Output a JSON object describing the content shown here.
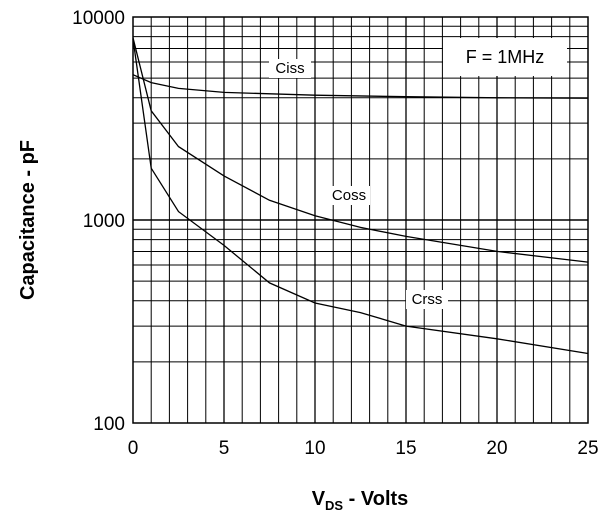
{
  "chart_data": {
    "type": "line",
    "title": "",
    "xlabel_main": "V",
    "xlabel_sub": "DS",
    "xlabel_rest": " - Volts",
    "ylabel": "Capacitance - pF",
    "y_scale": "log",
    "xlim": [
      0,
      25
    ],
    "ylim": [
      100,
      10000
    ],
    "x_ticks": [
      0,
      5,
      10,
      15,
      20,
      25
    ],
    "x_tick_labels": [
      "0",
      "5",
      "10",
      "15",
      "20",
      "25"
    ],
    "y_ticks": [
      100,
      1000,
      10000
    ],
    "y_tick_labels": [
      "100",
      "1000",
      "10000"
    ],
    "grid": true,
    "annotation": "F = 1MHz",
    "series": [
      {
        "name": "Ciss",
        "points": [
          [
            0,
            5200
          ],
          [
            1,
            4750
          ],
          [
            2.5,
            4450
          ],
          [
            5,
            4250
          ],
          [
            10,
            4120
          ],
          [
            15,
            4050
          ],
          [
            20,
            4000
          ],
          [
            25,
            3980
          ]
        ]
      },
      {
        "name": "Coss",
        "points": [
          [
            0,
            7900
          ],
          [
            1,
            3450
          ],
          [
            2.5,
            2300
          ],
          [
            5,
            1650
          ],
          [
            7.5,
            1250
          ],
          [
            10,
            1050
          ],
          [
            12.5,
            920
          ],
          [
            15,
            830
          ],
          [
            20,
            700
          ],
          [
            25,
            620
          ]
        ]
      },
      {
        "name": "Crss",
        "points": [
          [
            0,
            7800
          ],
          [
            1,
            1800
          ],
          [
            2.5,
            1100
          ],
          [
            5,
            750
          ],
          [
            7.5,
            490
          ],
          [
            10,
            390
          ],
          [
            12.5,
            350
          ],
          [
            15,
            300
          ],
          [
            20,
            260
          ],
          [
            25,
            220
          ]
        ]
      }
    ],
    "colors": {
      "line": "#000000",
      "grid": "#000000",
      "background": "#ffffff"
    }
  }
}
